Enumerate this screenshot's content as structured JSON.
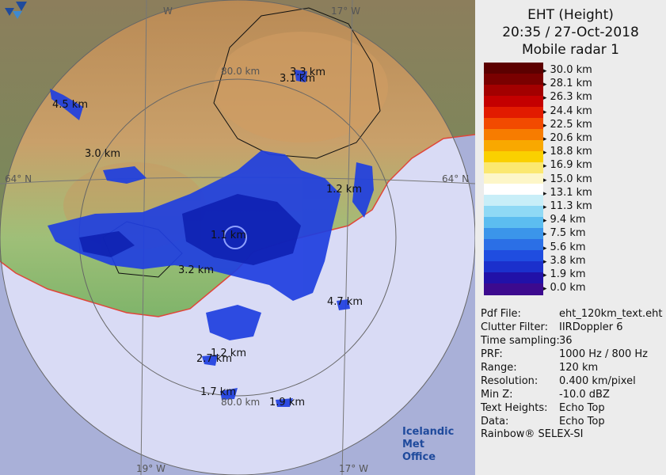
{
  "map": {
    "grid_labels": {
      "lon_w_top": "W",
      "lon_17_top": "17° W",
      "lat_left": "64° N",
      "lat_right": "64° N",
      "lon_19_bottom": "19° W",
      "lon_17_bottom": "17° W"
    },
    "range_labels": {
      "top": "80.0 km",
      "bottom": "80.0 km"
    },
    "echo_labels": [
      "3.3 km",
      "3.1 km",
      "4.5 km",
      "3.0 km",
      "1.2 km",
      "1.1 km",
      "3.2 km",
      "4.7 km",
      "1.2 km",
      "2.7 km",
      "1.7 km",
      "1.9 km"
    ],
    "colors": {
      "sea_inner": "#d9dbf5",
      "sea_outer": "#a9b0d8",
      "lowland": "#8dbb72",
      "highland": "#c7955a",
      "coast": "#e0463a"
    }
  },
  "logo": {
    "line1": "Icelandic Met",
    "line2": "Office"
  },
  "panel": {
    "title_lines": [
      "EHT (Height)",
      "20:35 / 27-Oct-2018",
      "Mobile radar 1"
    ],
    "colorbar": {
      "labels": [
        "30.0 km",
        "28.1 km",
        "26.3 km",
        "24.4 km",
        "22.5 km",
        "20.6 km",
        "18.8 km",
        "16.9 km",
        "15.0 km",
        "13.1 km",
        "11.3 km",
        "9.4 km",
        "7.5 km",
        "5.6 km",
        "3.8 km",
        "1.9 km",
        "0.0 km"
      ],
      "colors": [
        "#5c0000",
        "#7a0000",
        "#a30000",
        "#c40000",
        "#e21b00",
        "#f24a00",
        "#f77c00",
        "#f9a800",
        "#fad000",
        "#fbe870",
        "#fdf6c8",
        "#ffffff",
        "#c8eef8",
        "#8fd9f5",
        "#5cbdf0",
        "#3b95ea",
        "#2b6fe6",
        "#1f4de0",
        "#1b30cc",
        "#2111a8",
        "#3c0a8e"
      ]
    },
    "info": [
      {
        "key": "Pdf File:",
        "val": "eht_120km_text.eht"
      },
      {
        "key": "Clutter Filter:",
        "val": "IIRDoppler 6"
      },
      {
        "key": "Time sampling:",
        "val": "36"
      },
      {
        "key": "PRF:",
        "val": "1000 Hz / 800 Hz"
      },
      {
        "key": "Range:",
        "val": "120 km"
      },
      {
        "key": "Resolution:",
        "val": "0.400 km/pixel"
      },
      {
        "key": "Min Z:",
        "val": "-10.0 dBZ"
      },
      {
        "key": "Text Heights:",
        "val": "Echo Top"
      },
      {
        "key": "Data:",
        "val": "Echo Top"
      }
    ],
    "footer": "Rainbow® SELEX-SI"
  }
}
